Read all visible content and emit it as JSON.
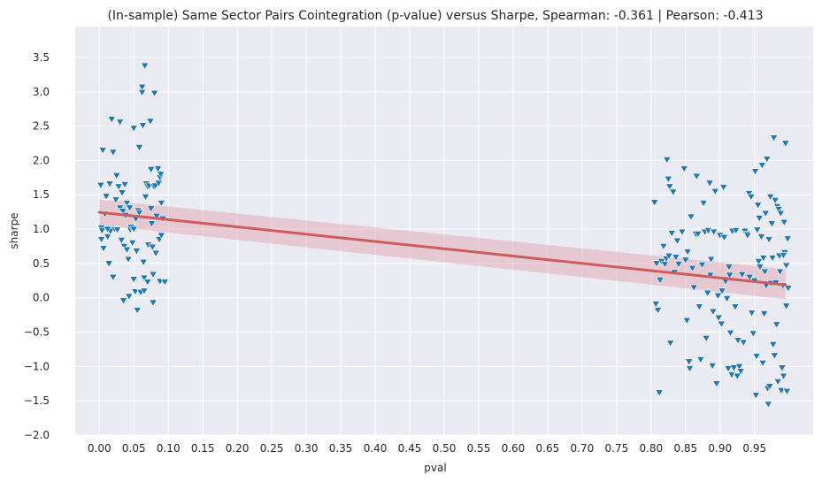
{
  "chart_data": {
    "type": "scatter",
    "title": "(In-sample) Same Sector Pairs Cointegration (p-value) versus Sharpe, Spearman: -0.361 | Pearson: -0.413",
    "xlabel": "pval",
    "ylabel": "sharpe",
    "xlim": [
      -0.035,
      1.035
    ],
    "ylim": [
      -2.0,
      3.95
    ],
    "x_ticks": [
      0.0,
      0.05,
      0.1,
      0.15,
      0.2,
      0.25,
      0.3,
      0.35,
      0.4,
      0.45,
      0.5,
      0.55,
      0.6,
      0.65,
      0.7,
      0.75,
      0.8,
      0.85,
      0.9,
      0.95
    ],
    "x_tick_labels": [
      "0.00",
      "0.05",
      "0.10",
      "0.15",
      "0.20",
      "0.25",
      "0.30",
      "0.35",
      "0.40",
      "0.45",
      "0.50",
      "0.55",
      "0.60",
      "0.65",
      "0.70",
      "0.75",
      "0.80",
      "0.85",
      "0.90",
      "0.95"
    ],
    "y_ticks": [
      -2.0,
      -1.5,
      -1.0,
      -0.5,
      0.0,
      0.5,
      1.0,
      1.5,
      2.0,
      2.5,
      3.0,
      3.5
    ],
    "y_tick_labels": [
      "−2.0",
      "−1.5",
      "−1.0",
      "−0.5",
      "0.0",
      "0.5",
      "1.0",
      "1.5",
      "2.0",
      "2.5",
      "3.0",
      "3.5"
    ],
    "grid": true,
    "marker": "triangle-down",
    "colors": {
      "background": "#eaeaf2",
      "points": "#1f77b4",
      "regression": "#cd5c5c",
      "band": "#e0a0aa"
    },
    "regression": {
      "x": [
        0.0,
        0.995
      ],
      "y": [
        1.245,
        0.188
      ],
      "ci_upper": [
        1.43,
        0.42
      ],
      "ci_lower": [
        1.06,
        -0.02
      ]
    },
    "points": [
      [
        0.002,
        1.64
      ],
      [
        0.005,
        2.15
      ],
      [
        0.003,
        1.02
      ],
      [
        0.004,
        0.98
      ],
      [
        0.006,
        0.72
      ],
      [
        0.003,
        0.85
      ],
      [
        0.008,
        1.22
      ],
      [
        0.01,
        1.48
      ],
      [
        0.012,
        0.89
      ],
      [
        0.014,
        0.5
      ],
      [
        0.015,
        1.66
      ],
      [
        0.016,
        0.97
      ],
      [
        0.018,
        2.6
      ],
      [
        0.02,
        2.12
      ],
      [
        0.02,
        0.3
      ],
      [
        0.022,
        1.0
      ],
      [
        0.024,
        1.43
      ],
      [
        0.025,
        1.78
      ],
      [
        0.026,
        0.99
      ],
      [
        0.028,
        1.62
      ],
      [
        0.03,
        2.56
      ],
      [
        0.03,
        1.31
      ],
      [
        0.032,
        0.84
      ],
      [
        0.033,
        1.53
      ],
      [
        0.034,
        1.26
      ],
      [
        0.035,
        -0.04
      ],
      [
        0.036,
        0.75
      ],
      [
        0.037,
        1.65
      ],
      [
        0.038,
        1.2
      ],
      [
        0.04,
        0.7
      ],
      [
        0.04,
        1.38
      ],
      [
        0.042,
        0.56
      ],
      [
        0.043,
        0.02
      ],
      [
        0.044,
        1.31
      ],
      [
        0.045,
        0.99
      ],
      [
        0.046,
        1.03
      ],
      [
        0.048,
        0.8
      ],
      [
        0.05,
        2.47
      ],
      [
        0.05,
        0.27
      ],
      [
        0.052,
        0.09
      ],
      [
        0.053,
        1.15
      ],
      [
        0.054,
        0.68
      ],
      [
        0.055,
        -0.18
      ],
      [
        0.056,
        1.27
      ],
      [
        0.058,
        1.24
      ],
      [
        0.058,
        2.19
      ],
      [
        0.06,
        0.08
      ],
      [
        0.062,
        3.07
      ],
      [
        0.062,
        2.99
      ],
      [
        0.063,
        2.51
      ],
      [
        0.064,
        0.52
      ],
      [
        0.065,
        0.29
      ],
      [
        0.065,
        0.1
      ],
      [
        0.066,
        3.38
      ],
      [
        0.067,
        1.47
      ],
      [
        0.068,
        1.66
      ],
      [
        0.07,
        1.62
      ],
      [
        0.07,
        0.23
      ],
      [
        0.071,
        0.77
      ],
      [
        0.072,
        1.63
      ],
      [
        0.074,
        2.57
      ],
      [
        0.075,
        1.87
      ],
      [
        0.075,
        1.3
      ],
      [
        0.076,
        1.08
      ],
      [
        0.077,
        0.74
      ],
      [
        0.078,
        0.34
      ],
      [
        0.078,
        -0.07
      ],
      [
        0.079,
        1.62
      ],
      [
        0.08,
        2.98
      ],
      [
        0.081,
        1.63
      ],
      [
        0.082,
        0.65
      ],
      [
        0.083,
        1.19
      ],
      [
        0.085,
        1.88
      ],
      [
        0.086,
        1.67
      ],
      [
        0.087,
        0.85
      ],
      [
        0.088,
        1.75
      ],
      [
        0.088,
        0.24
      ],
      [
        0.089,
        1.8
      ],
      [
        0.09,
        0.91
      ],
      [
        0.09,
        1.38
      ],
      [
        0.092,
        1.15
      ],
      [
        0.095,
        0.23
      ],
      [
        0.012,
        1.0
      ],
      [
        0.02,
        0.3
      ],
      [
        0.05,
        1.0
      ],
      [
        0.805,
        1.39
      ],
      [
        0.807,
        -0.09
      ],
      [
        0.808,
        0.5
      ],
      [
        0.81,
        -0.18
      ],
      [
        0.812,
        -1.38
      ],
      [
        0.813,
        0.26
      ],
      [
        0.815,
        0.53
      ],
      [
        0.818,
        0.75
      ],
      [
        0.82,
        0.49
      ],
      [
        0.822,
        0.57
      ],
      [
        0.823,
        2.01
      ],
      [
        0.825,
        1.73
      ],
      [
        0.826,
        0.61
      ],
      [
        0.827,
        1.62
      ],
      [
        0.828,
        -0.66
      ],
      [
        0.83,
        0.94
      ],
      [
        0.832,
        1.54
      ],
      [
        0.834,
        0.37
      ],
      [
        0.836,
        0.59
      ],
      [
        0.838,
        0.83
      ],
      [
        0.84,
        0.49
      ],
      [
        0.845,
        0.96
      ],
      [
        0.848,
        1.88
      ],
      [
        0.85,
        0.55
      ],
      [
        0.852,
        -0.33
      ],
      [
        0.853,
        0.67
      ],
      [
        0.855,
        -0.93
      ],
      [
        0.856,
        -1.03
      ],
      [
        0.858,
        1.18
      ],
      [
        0.86,
        0.43
      ],
      [
        0.862,
        0.15
      ],
      [
        0.865,
        0.93
      ],
      [
        0.866,
        1.77
      ],
      [
        0.868,
        0.93
      ],
      [
        0.87,
        -0.13
      ],
      [
        0.872,
        -0.9
      ],
      [
        0.874,
        0.48
      ],
      [
        0.876,
        1.38
      ],
      [
        0.878,
        0.96
      ],
      [
        0.88,
        -0.59
      ],
      [
        0.882,
        0.07
      ],
      [
        0.883,
        0.98
      ],
      [
        0.885,
        1.67
      ],
      [
        0.886,
        0.33
      ],
      [
        0.887,
        0.56
      ],
      [
        0.889,
        -0.99
      ],
      [
        0.89,
        -0.2
      ],
      [
        0.891,
        0.96
      ],
      [
        0.893,
        1.55
      ],
      [
        0.895,
        -1.25
      ],
      [
        0.896,
        0.04
      ],
      [
        0.897,
        0.03
      ],
      [
        0.898,
        -0.29
      ],
      [
        0.9,
        0.91
      ],
      [
        0.902,
        -0.38
      ],
      [
        0.903,
        0.1
      ],
      [
        0.905,
        1.61
      ],
      [
        0.906,
        0.88
      ],
      [
        0.908,
        0.24
      ],
      [
        0.91,
        -0.01
      ],
      [
        0.912,
        -1.03
      ],
      [
        0.913,
        0.45
      ],
      [
        0.914,
        0.33
      ],
      [
        0.915,
        -0.51
      ],
      [
        0.917,
        -1.12
      ],
      [
        0.918,
        0.97
      ],
      [
        0.92,
        -1.02
      ],
      [
        0.922,
        -0.13
      ],
      [
        0.923,
        0.98
      ],
      [
        0.925,
        -1.14
      ],
      [
        0.926,
        -0.62
      ],
      [
        0.928,
        -1.0
      ],
      [
        0.93,
        -1.07
      ],
      [
        0.932,
        0.34
      ],
      [
        0.934,
        -0.65
      ],
      [
        0.936,
        0.97
      ],
      [
        0.938,
        0.93
      ],
      [
        0.94,
        0.91
      ],
      [
        0.942,
        1.52
      ],
      [
        0.943,
        0.3
      ],
      [
        0.945,
        1.47
      ],
      [
        0.946,
        -0.22
      ],
      [
        0.948,
        -0.52
      ],
      [
        0.95,
        0.25
      ],
      [
        0.951,
        1.84
      ],
      [
        0.952,
        -1.42
      ],
      [
        0.953,
        -0.85
      ],
      [
        0.954,
        0.99
      ],
      [
        0.955,
        1.35
      ],
      [
        0.956,
        0.53
      ],
      [
        0.957,
        1.16
      ],
      [
        0.958,
        0.45
      ],
      [
        0.96,
        0.89
      ],
      [
        0.961,
        1.93
      ],
      [
        0.962,
        -0.95
      ],
      [
        0.963,
        0.58
      ],
      [
        0.964,
        -0.23
      ],
      [
        0.965,
        0.38
      ],
      [
        0.966,
        1.23
      ],
      [
        0.967,
        0.18
      ],
      [
        0.968,
        2.02
      ],
      [
        0.969,
        -1.32
      ],
      [
        0.97,
        -1.55
      ],
      [
        0.971,
        0.85
      ],
      [
        0.972,
        -1.29
      ],
      [
        0.973,
        1.47
      ],
      [
        0.974,
        0.21
      ],
      [
        0.975,
        1.08
      ],
      [
        0.976,
        0.58
      ],
      [
        0.977,
        -0.68
      ],
      [
        0.978,
        2.33
      ],
      [
        0.979,
        -0.84
      ],
      [
        0.98,
        1.42
      ],
      [
        0.981,
        0.22
      ],
      [
        0.982,
        -0.39
      ],
      [
        0.983,
        1.33
      ],
      [
        0.984,
        -1.22
      ],
      [
        0.985,
        1.29
      ],
      [
        0.986,
        0.61
      ],
      [
        0.987,
        0.38
      ],
      [
        0.988,
        1.23
      ],
      [
        0.989,
        -1.35
      ],
      [
        0.99,
        -1.02
      ],
      [
        0.991,
        0.18
      ],
      [
        0.992,
        -1.14
      ],
      [
        0.993,
        1.1
      ],
      [
        0.994,
        0.66
      ],
      [
        0.995,
        2.25
      ],
      [
        0.996,
        0.47
      ],
      [
        0.997,
        -1.36
      ],
      [
        0.998,
        0.86
      ],
      [
        0.999,
        0.14
      ],
      [
        0.996,
        -0.12
      ],
      [
        0.992,
        0.62
      ]
    ]
  }
}
